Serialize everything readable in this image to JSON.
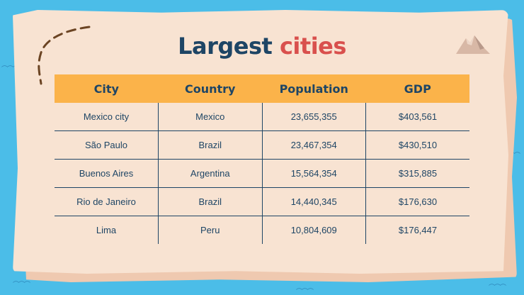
{
  "slide": {
    "title_part1": "Largest",
    "title_part2": "cities"
  },
  "table": {
    "headers": [
      "City",
      "Country",
      "Population",
      "GDP"
    ],
    "rows": [
      [
        "Mexico city",
        "Mexico",
        "23,655,355",
        "$403,561"
      ],
      [
        "São Paulo",
        "Brazil",
        "23,467,354",
        "$430,510"
      ],
      [
        "Buenos Aires",
        "Argentina",
        "15,564,354",
        "$315,885"
      ],
      [
        "Rio de Janeiro",
        "Brazil",
        "14,440,345",
        "$176,630"
      ],
      [
        "Lima",
        "Peru",
        "10,804,609",
        "$176,447"
      ]
    ]
  },
  "colors": {
    "background": "#4bbde8",
    "parchment": "#f8e3d2",
    "header": "#fbb34a",
    "text": "#1e4565",
    "accent": "#d9504d"
  },
  "icons": [
    "dashed-path-icon",
    "mountain-icon",
    "wave-icon"
  ]
}
